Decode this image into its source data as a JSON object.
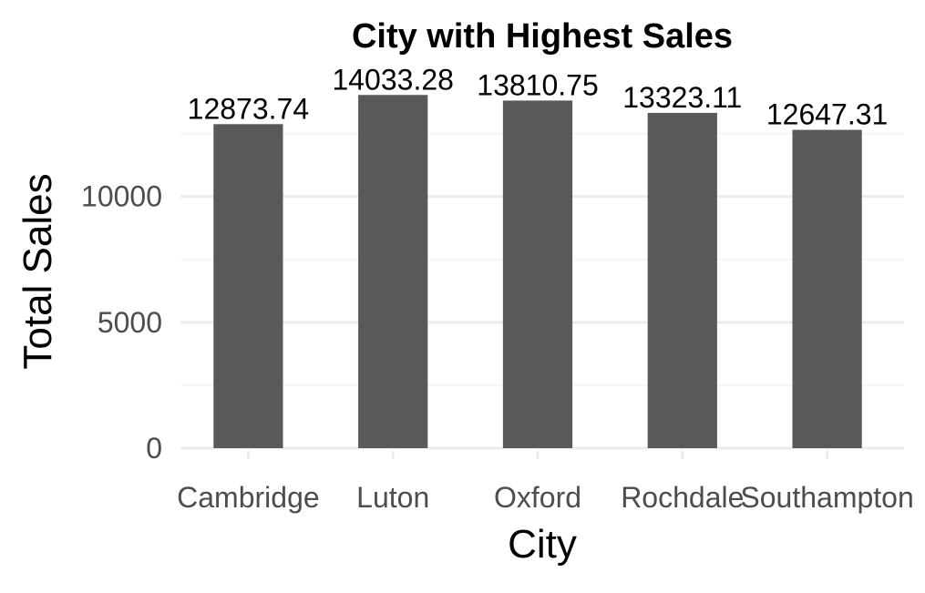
{
  "chart_data": {
    "type": "bar",
    "title": "City with Highest Sales",
    "xlabel": "City",
    "ylabel": "Total Sales",
    "categories": [
      "Cambridge",
      "Luton",
      "Oxford",
      "Rochdale",
      "Southampton"
    ],
    "values": [
      12873.74,
      14033.28,
      13810.75,
      13323.11,
      12647.31
    ],
    "data_labels": [
      "12873.74",
      "14033.28",
      "13810.75",
      "13323.11",
      "12647.31"
    ],
    "y_ticks": [
      0,
      5000,
      10000
    ],
    "y_tick_labels": [
      "0",
      "5000",
      "10000"
    ],
    "y_minor_ticks": [
      2500,
      7500,
      12500
    ],
    "ylim": [
      0,
      14033.28
    ],
    "grid": true,
    "legend": "none",
    "colors": {
      "bar": "#595959",
      "grid_major": "#ebebeb",
      "grid_minor": "#f2f2f2",
      "tick_text": "#4d4d4d",
      "text": "#000000"
    }
  }
}
